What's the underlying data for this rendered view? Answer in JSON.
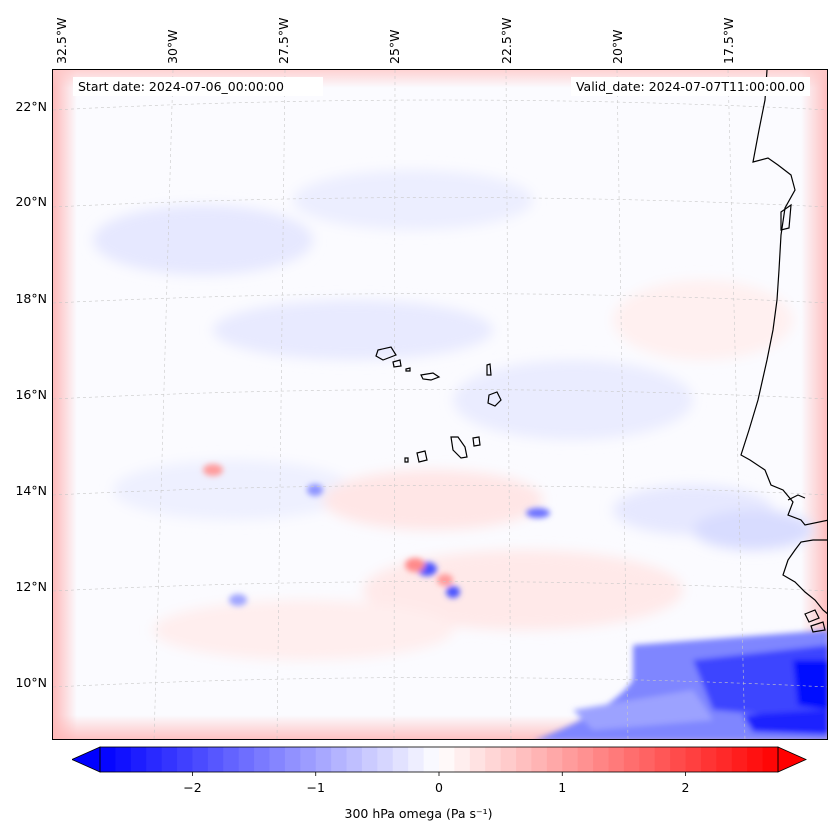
{
  "map": {
    "start_label": "Start date: 2024-07-06_00:00:00",
    "valid_label": "Valid_date: 2024-07-07T11:00:00.00",
    "longitude_labels": [
      "32.5°W",
      "30°W",
      "27.5°W",
      "25°W",
      "22.5°W",
      "20°W",
      "17.5°W"
    ],
    "latitude_labels": [
      "22°N",
      "20°N",
      "18°N",
      "16°N",
      "14°N",
      "12°N",
      "10°N"
    ],
    "field": "300 hPa omega",
    "colors": {
      "negative": "#0000ff",
      "zero": "#ffffff",
      "positive": "#ff0000",
      "coastline": "#000000",
      "gridline": "#c8c8c8"
    }
  },
  "colorbar": {
    "label": "300 hPa omega (Pa s⁻¹)",
    "min": -2.75,
    "max": 2.75,
    "ticks": [
      {
        "value": -2,
        "label": "−2"
      },
      {
        "value": -1,
        "label": "−1"
      },
      {
        "value": 0,
        "label": "0"
      },
      {
        "value": 1,
        "label": "1"
      },
      {
        "value": 2,
        "label": "2"
      }
    ],
    "extend": "both"
  }
}
